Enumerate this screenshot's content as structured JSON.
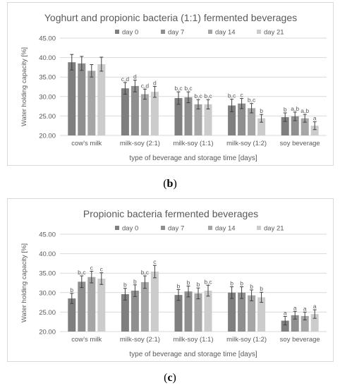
{
  "colors": {
    "day0": "#7f7f7f",
    "day7": "#8f8f8f",
    "day14": "#a6a6a6",
    "day21": "#cccccc",
    "grid": "#d9d9d9",
    "text": "#595959",
    "errorbar": "#404040"
  },
  "captions": {
    "b_open": "(",
    "b_letter": "b",
    "b_close": ")",
    "c_open": "(",
    "c_letter": "c",
    "c_close": ")"
  },
  "chart_data": [
    {
      "type": "bar",
      "title": "Yoghurt and propionic bacteria (1:1) fermented beverages",
      "xlabel": "type of beverage and storage time [days]",
      "ylabel": "Water holding capacity [%]",
      "ylim": [
        20,
        45
      ],
      "yticks": [
        "20.00",
        "25.00",
        "30.00",
        "35.00",
        "40.00",
        "45.00"
      ],
      "grid": true,
      "legend_position": "top",
      "categories": [
        "cow's milk",
        "milk-soy (2:1)",
        "milk-soy (1:1)",
        "milk-soy (1:2)",
        "soy beverage"
      ],
      "series": [
        {
          "name": "day 0",
          "values": [
            38.8,
            32.1,
            29.6,
            27.7,
            24.7
          ],
          "errors": [
            2.0,
            1.5,
            1.6,
            1.6,
            1.1
          ],
          "labels": [
            "",
            "c,d",
            "b,c",
            "b,c",
            "b"
          ]
        },
        {
          "name": "day 7",
          "values": [
            38.5,
            32.7,
            29.8,
            28.2,
            24.9
          ],
          "errors": [
            1.8,
            1.5,
            1.4,
            1.3,
            1.1
          ],
          "labels": [
            "",
            "d",
            "b,c",
            "c",
            "a,b"
          ]
        },
        {
          "name": "day 14",
          "values": [
            36.6,
            30.6,
            28.0,
            27.0,
            24.4
          ],
          "errors": [
            1.6,
            1.3,
            1.2,
            1.2,
            1.0
          ],
          "labels": [
            "",
            "c,d",
            "b,c",
            "b,c",
            "a,b"
          ]
        },
        {
          "name": "day 21",
          "values": [
            38.3,
            31.2,
            28.0,
            24.4,
            22.5
          ],
          "errors": [
            1.8,
            1.4,
            1.2,
            1.0,
            1.0
          ],
          "labels": [
            "",
            "d",
            "b,c",
            "b",
            "a"
          ]
        }
      ]
    },
    {
      "type": "bar",
      "title": "Propionic bacteria fermented beverages",
      "xlabel": "type of beverage and storage time [days]",
      "ylabel": "Water holding capacity [%]",
      "ylim": [
        20,
        45
      ],
      "yticks": [
        "20.00",
        "25.00",
        "30.00",
        "35.00",
        "40.00",
        "45.00"
      ],
      "grid": true,
      "legend_position": "top",
      "categories": [
        "cow's milk",
        "milk-soy (2:1)",
        "milk-soy (1:1)",
        "milk-soy (1:2)",
        "soy beverage"
      ],
      "series": [
        {
          "name": "day 0",
          "values": [
            28.5,
            29.6,
            29.4,
            30.0,
            22.8
          ],
          "errors": [
            1.3,
            1.5,
            1.4,
            1.5,
            1.1
          ],
          "labels": [
            "b",
            "b",
            "b",
            "b",
            "a"
          ]
        },
        {
          "name": "day 7",
          "values": [
            32.8,
            30.5,
            30.3,
            30.0,
            24.2
          ],
          "errors": [
            1.5,
            1.5,
            1.4,
            1.5,
            1.0
          ],
          "labels": [
            "b,c",
            "b",
            "b",
            "b",
            "a"
          ]
        },
        {
          "name": "day 14",
          "values": [
            34.0,
            32.7,
            29.8,
            29.3,
            24.0
          ],
          "errors": [
            1.5,
            1.6,
            1.4,
            1.4,
            1.0
          ],
          "labels": [
            "c",
            "b,c",
            "b",
            "b",
            "a"
          ]
        },
        {
          "name": "day 21",
          "values": [
            33.6,
            35.4,
            30.5,
            28.8,
            24.5
          ],
          "errors": [
            1.5,
            1.6,
            1.4,
            1.3,
            1.1
          ],
          "labels": [
            "c",
            "c",
            "b,c",
            "b",
            "a"
          ]
        }
      ]
    }
  ]
}
